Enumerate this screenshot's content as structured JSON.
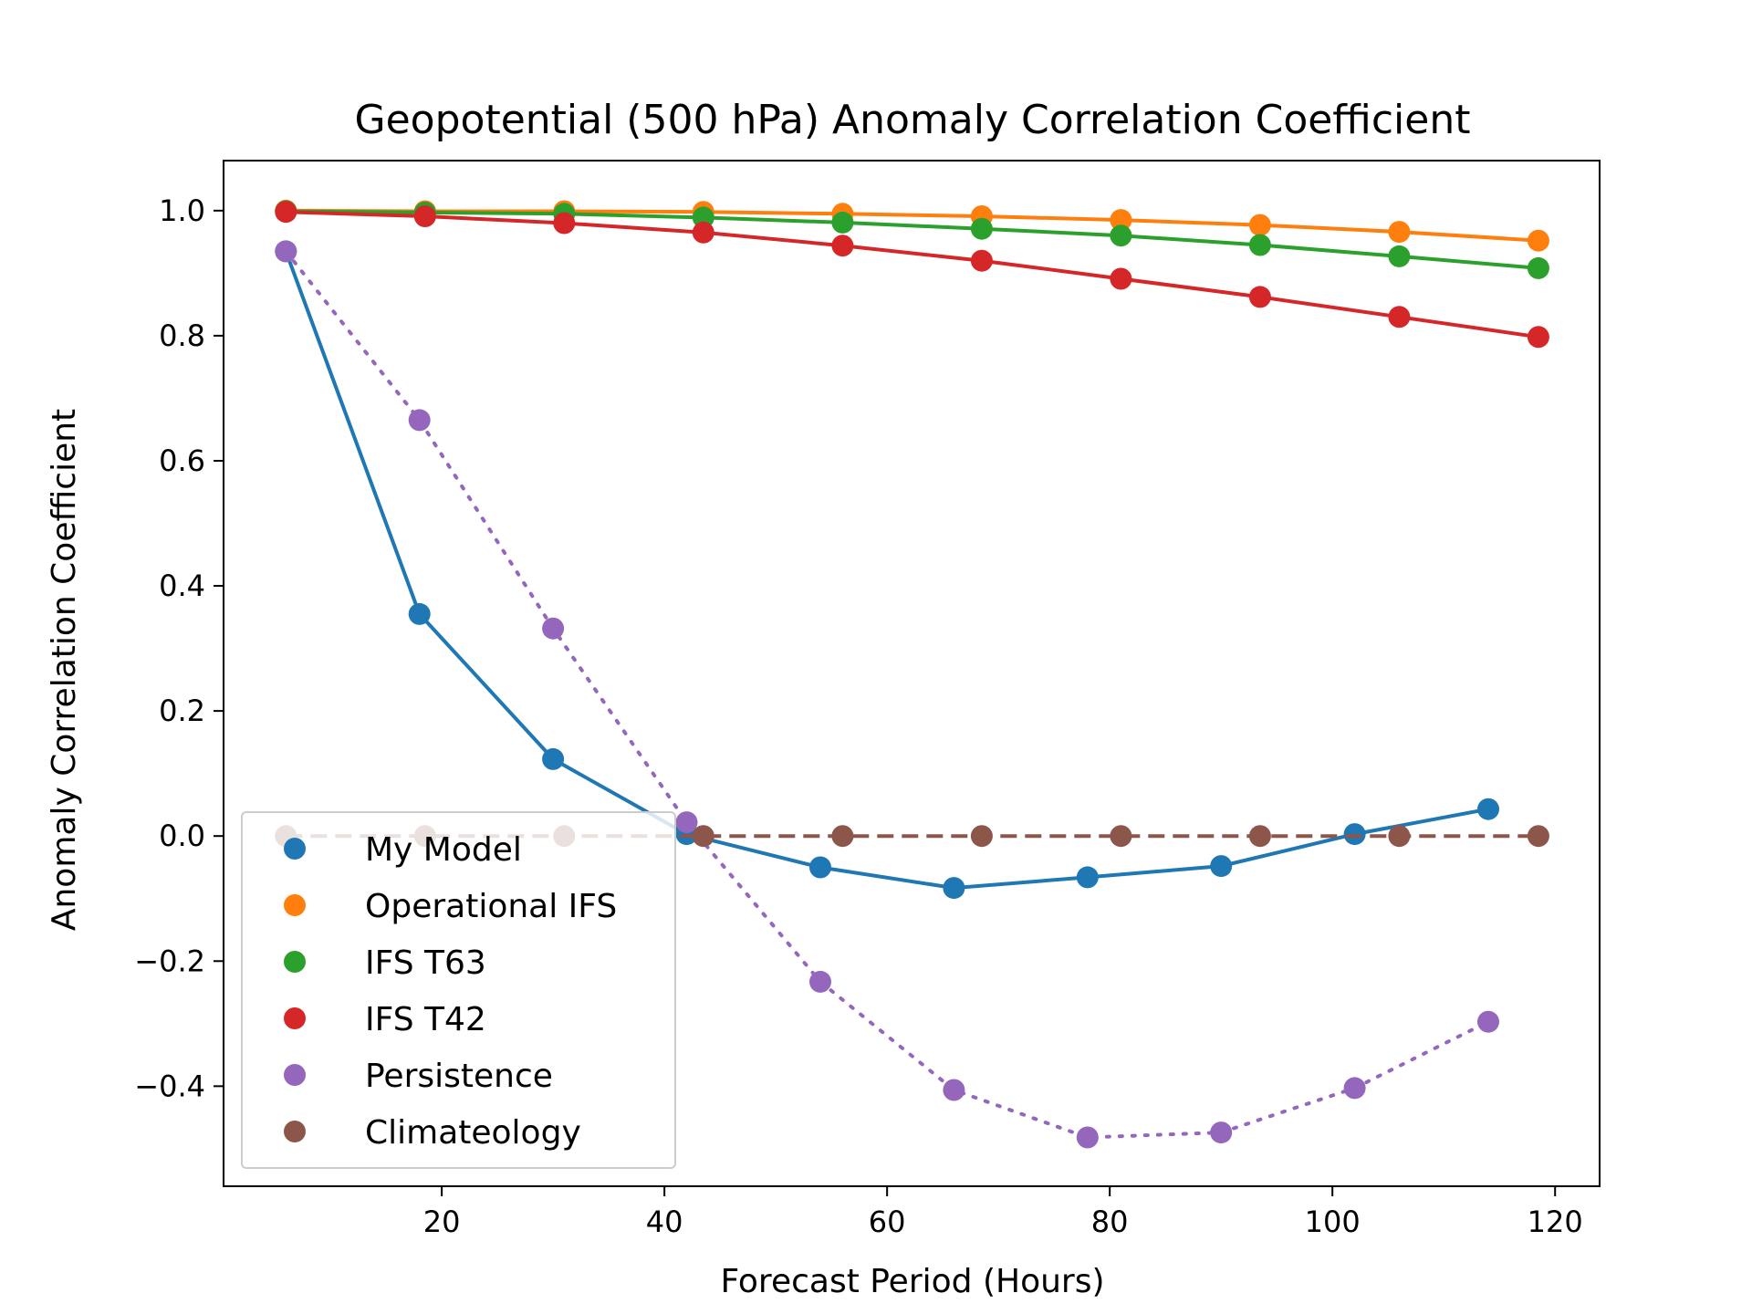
{
  "chart_data": {
    "type": "line",
    "title": "Geopotential (500 hPa) Anomaly Correlation Coefficient",
    "xlabel": "Forecast Period (Hours)",
    "ylabel": "Anomaly Correlation Coefficient",
    "xlim": [
      0.4,
      124.0
    ],
    "ylim": [
      -0.56,
      1.08
    ],
    "x_ticks": [
      20,
      40,
      60,
      80,
      100,
      120
    ],
    "x_tick_labels": [
      "20",
      "40",
      "60",
      "80",
      "100",
      "120"
    ],
    "y_ticks": [
      -0.4,
      -0.2,
      0.0,
      0.2,
      0.4,
      0.6,
      0.8,
      1.0
    ],
    "y_tick_labels": [
      "−0.4",
      "−0.2",
      "0.0",
      "0.2",
      "0.4",
      "0.6",
      "0.8",
      "1.0"
    ],
    "grid": false,
    "legend_position": "lower-left",
    "series": [
      {
        "name": "My Model",
        "color": "#1f77b4",
        "line_style": "solid",
        "x": [
          6,
          18,
          30,
          42,
          54,
          66,
          78,
          90,
          102,
          114
        ],
        "y": [
          0.935,
          0.355,
          0.123,
          0.003,
          -0.05,
          -0.083,
          -0.066,
          -0.048,
          0.003,
          0.043
        ]
      },
      {
        "name": "Operational IFS",
        "color": "#ff7f0e",
        "line_style": "solid",
        "x": [
          6,
          18.5,
          31,
          43.5,
          56,
          68.5,
          81,
          93.5,
          106,
          118.5
        ],
        "y": [
          1.0,
          0.999,
          0.999,
          0.998,
          0.995,
          0.991,
          0.985,
          0.977,
          0.966,
          0.952
        ]
      },
      {
        "name": "IFS T63",
        "color": "#2ca02c",
        "line_style": "solid",
        "x": [
          6,
          18.5,
          31,
          43.5,
          56,
          68.5,
          81,
          93.5,
          106,
          118.5
        ],
        "y": [
          0.999,
          0.997,
          0.995,
          0.989,
          0.981,
          0.971,
          0.96,
          0.945,
          0.927,
          0.908
        ]
      },
      {
        "name": "IFS T42",
        "color": "#d62728",
        "line_style": "solid",
        "x": [
          6,
          18.5,
          31,
          43.5,
          56,
          68.5,
          81,
          93.5,
          106,
          118.5
        ],
        "y": [
          0.998,
          0.991,
          0.98,
          0.965,
          0.944,
          0.92,
          0.891,
          0.862,
          0.83,
          0.798
        ]
      },
      {
        "name": "Persistence",
        "color": "#9467bd",
        "line_style": "dotted",
        "x": [
          6,
          18,
          30,
          42,
          54,
          66,
          78,
          90,
          102,
          114
        ],
        "y": [
          0.935,
          0.665,
          0.332,
          0.022,
          -0.233,
          -0.406,
          -0.482,
          -0.474,
          -0.403,
          -0.297
        ]
      },
      {
        "name": "Climateology",
        "color": "#8c564b",
        "line_style": "dashed",
        "x": [
          6,
          18.5,
          31,
          43.5,
          56,
          68.5,
          81,
          93.5,
          106,
          118.5
        ],
        "y": [
          0,
          0,
          0,
          0,
          0,
          0,
          0,
          0,
          0,
          0
        ]
      }
    ]
  }
}
